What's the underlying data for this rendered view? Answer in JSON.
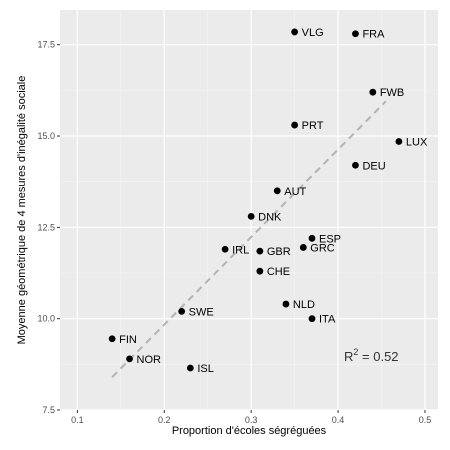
{
  "chart_data": {
    "type": "scatter",
    "xlabel": "Proportion d'écoles ségréguées",
    "ylabel": "Moyenne géométrique de 4 mesures d'inégalité sociale",
    "xlim": [
      0.08,
      0.515
    ],
    "ylim": [
      7.5,
      18.45
    ],
    "x_ticks": [
      0.1,
      0.2,
      0.3,
      0.4,
      0.5
    ],
    "x_tick_labels": [
      "0.1",
      "0.2",
      "0.3",
      "0.4",
      "0.5"
    ],
    "y_ticks": [
      7.5,
      10.0,
      12.5,
      15.0,
      17.5
    ],
    "y_tick_labels": [
      "7.5",
      "10.0",
      "12.5",
      "15.0",
      "17.5"
    ],
    "grid": true,
    "points": [
      {
        "label": "VLG",
        "x": 0.35,
        "y": 17.85
      },
      {
        "label": "FRA",
        "x": 0.42,
        "y": 17.8
      },
      {
        "label": "FWB",
        "x": 0.44,
        "y": 16.2
      },
      {
        "label": "PRT",
        "x": 0.35,
        "y": 15.3
      },
      {
        "label": "LUX",
        "x": 0.47,
        "y": 14.85
      },
      {
        "label": "DEU",
        "x": 0.42,
        "y": 14.2
      },
      {
        "label": "AUT",
        "x": 0.33,
        "y": 13.5
      },
      {
        "label": "DNK",
        "x": 0.3,
        "y": 12.8
      },
      {
        "label": "ESP",
        "x": 0.37,
        "y": 12.2
      },
      {
        "label": "GRC",
        "x": 0.36,
        "y": 11.95
      },
      {
        "label": "IRL",
        "x": 0.27,
        "y": 11.9
      },
      {
        "label": "GBR",
        "x": 0.31,
        "y": 11.85
      },
      {
        "label": "CHE",
        "x": 0.31,
        "y": 11.3
      },
      {
        "label": "NLD",
        "x": 0.34,
        "y": 10.4
      },
      {
        "label": "SWE",
        "x": 0.22,
        "y": 10.2
      },
      {
        "label": "ITA",
        "x": 0.37,
        "y": 10.0
      },
      {
        "label": "FIN",
        "x": 0.14,
        "y": 9.45
      },
      {
        "label": "NOR",
        "x": 0.16,
        "y": 8.9
      },
      {
        "label": "ISL",
        "x": 0.23,
        "y": 8.65
      }
    ],
    "trendline": {
      "x1": 0.14,
      "y1": 8.4,
      "x2": 0.455,
      "y2": 15.95
    },
    "annotation": {
      "base": "R",
      "sup": "2",
      "rest": " = 0.52"
    },
    "colors": {
      "panel": "#ebebeb",
      "grid": "#ffffff",
      "point": "#000000",
      "trend": "#b3b3b3"
    }
  }
}
